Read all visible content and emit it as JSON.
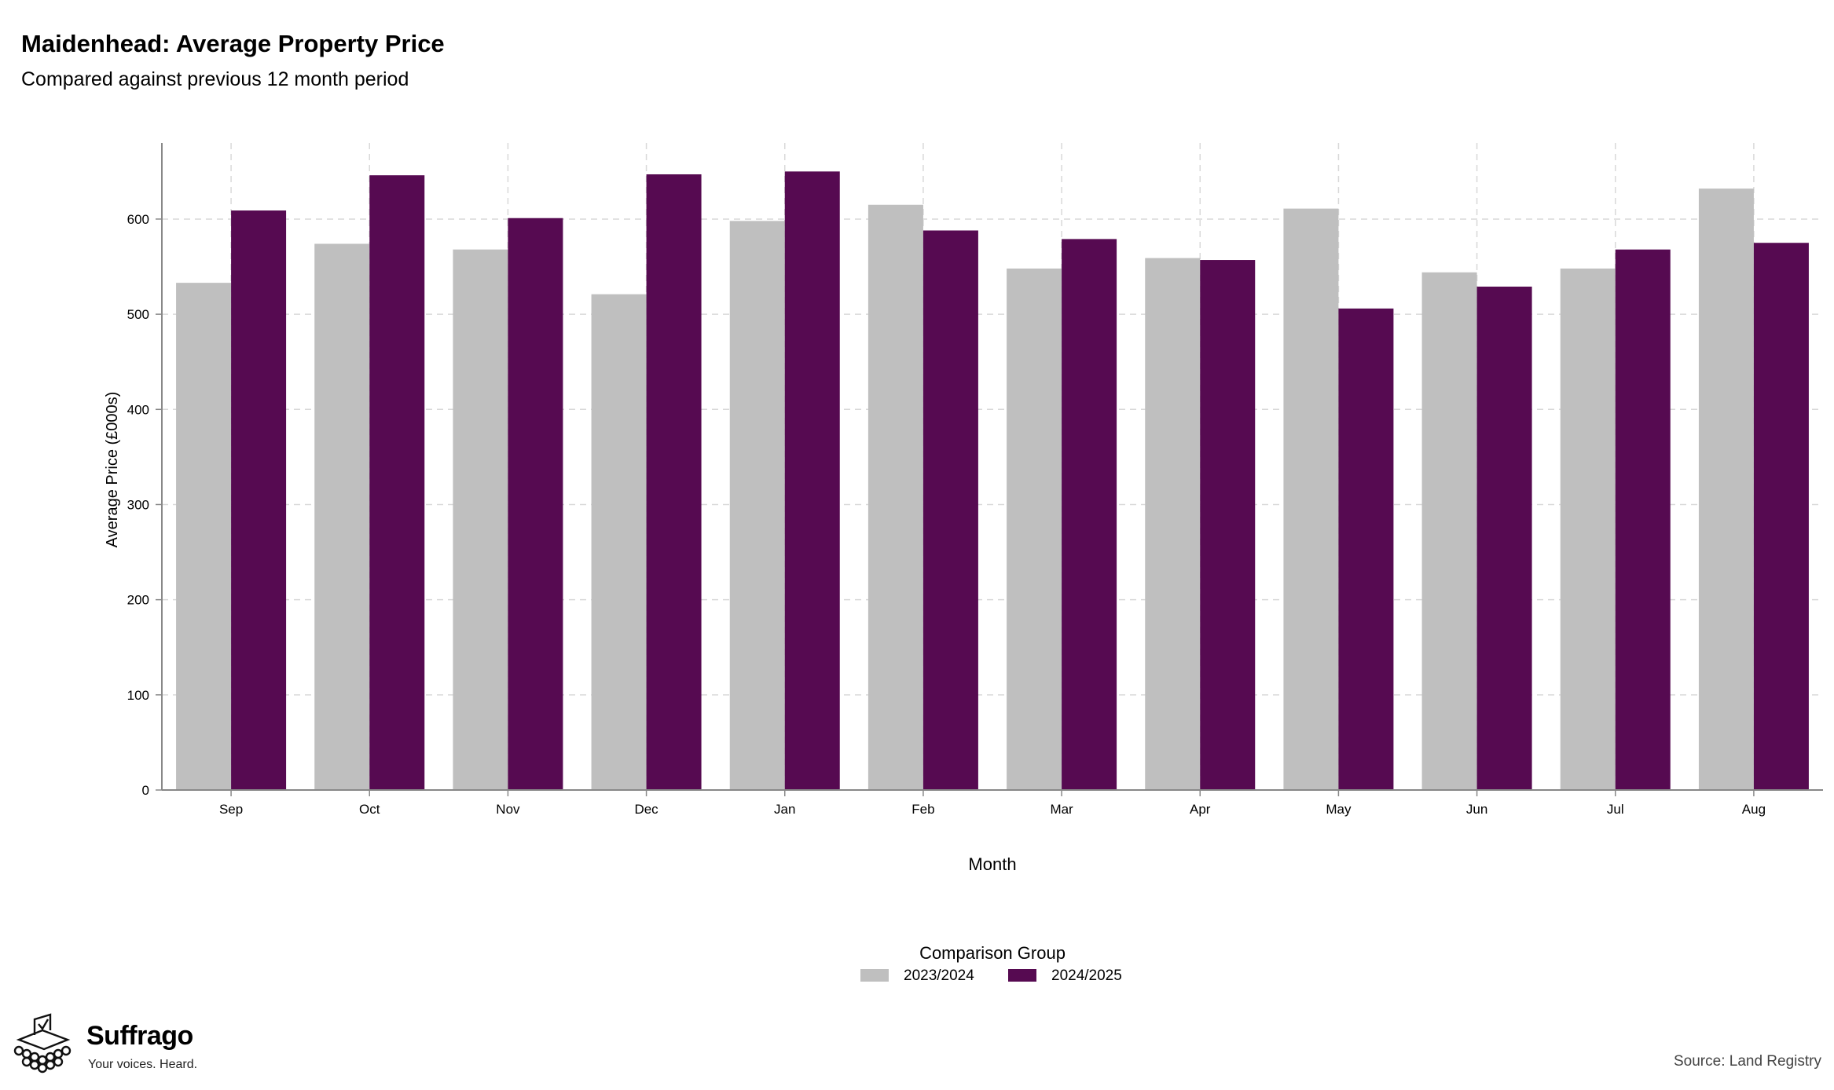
{
  "chart_data": {
    "type": "bar",
    "title": "Maidenhead: Average Property Price",
    "subtitle": "Compared against previous 12 month period",
    "xlabel": "Month",
    "ylabel": "Average Price (£000s)",
    "ylim": [
      0,
      680
    ],
    "yticks": [
      0,
      100,
      200,
      300,
      400,
      500,
      600
    ],
    "grid": true,
    "categories": [
      "Sep",
      "Oct",
      "Nov",
      "Dec",
      "Jan",
      "Feb",
      "Mar",
      "Apr",
      "May",
      "Jun",
      "Jul",
      "Aug"
    ],
    "series": [
      {
        "name": "2023/2024",
        "color": "#bfbfbf",
        "values": [
          533,
          574,
          568,
          521,
          598,
          615,
          548,
          559,
          611,
          544,
          548,
          632
        ]
      },
      {
        "name": "2024/2025",
        "color": "#560a51",
        "values": [
          609,
          646,
          601,
          647,
          650,
          588,
          579,
          557,
          506,
          529,
          568,
          575
        ]
      }
    ],
    "legend": {
      "title": "Comparison Group",
      "position": "bottom"
    }
  },
  "brand": {
    "name": "Suffrago",
    "tagline": "Your voices. Heard."
  },
  "source": "Source: Land Registry"
}
